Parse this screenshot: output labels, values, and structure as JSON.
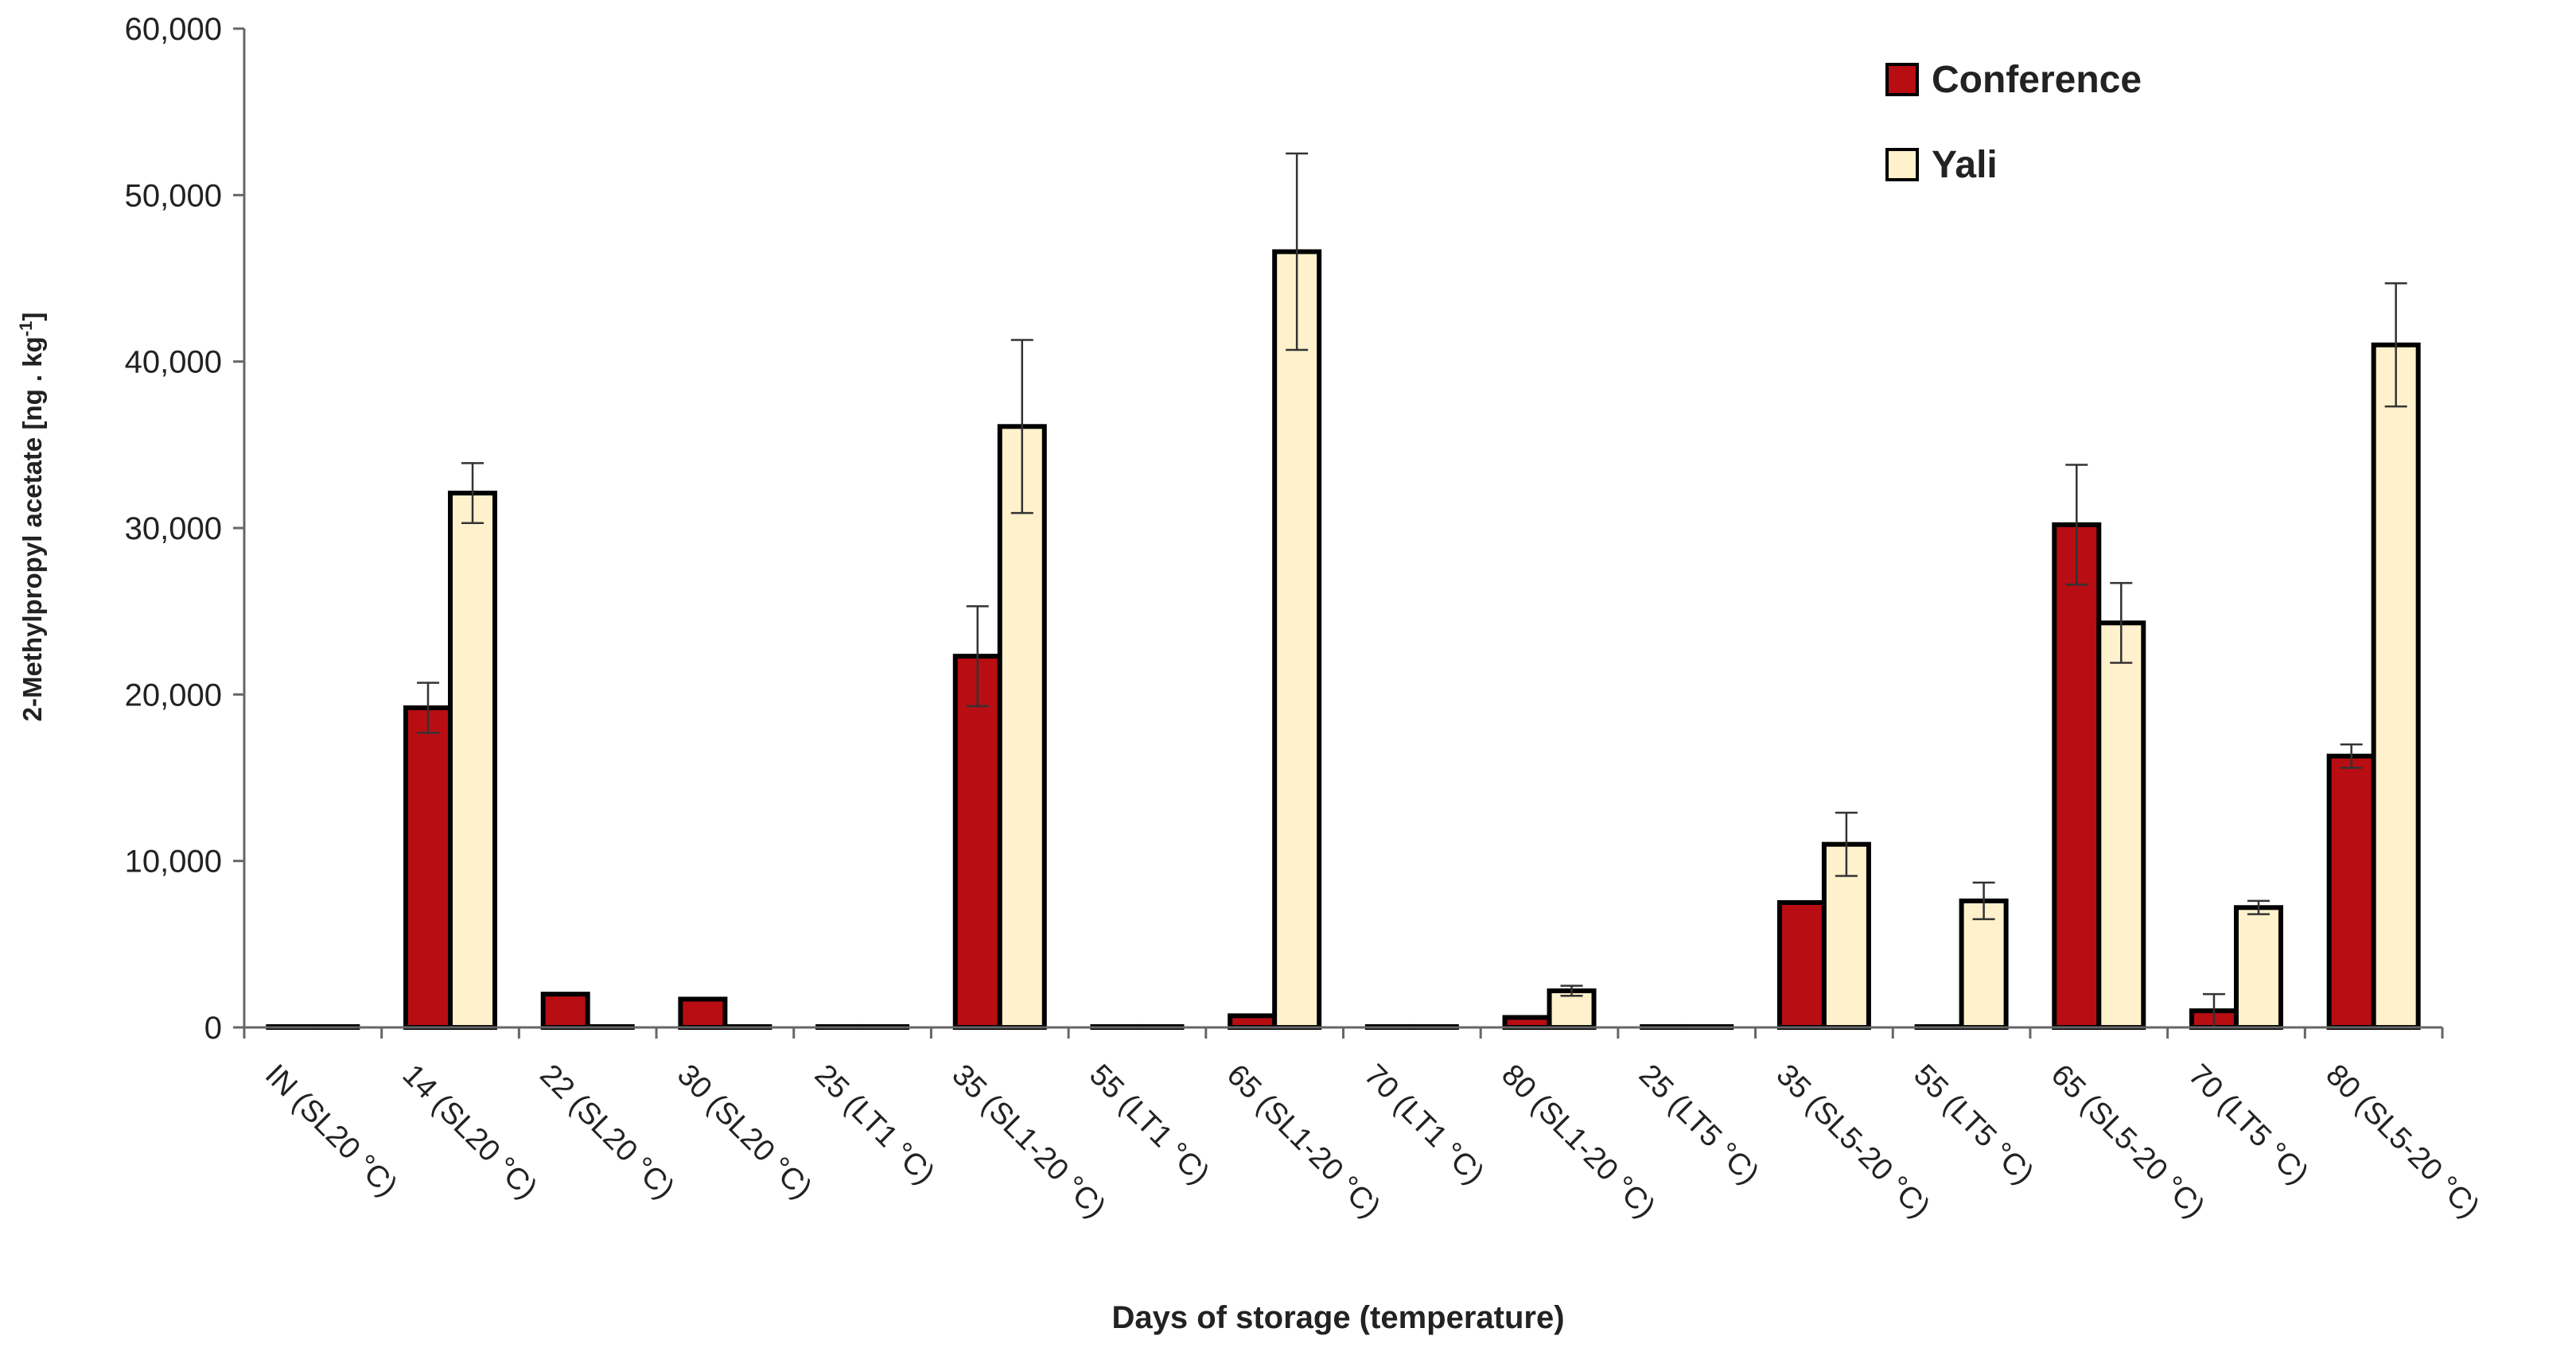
{
  "colors": {
    "conference_fill": "#b80d13",
    "yali_fill": "#fff1cc",
    "bar_stroke": "#000000",
    "axis": "#666666",
    "text": "#222222"
  },
  "chart_data": {
    "type": "bar",
    "title": "",
    "xlabel": "Days of storage (temperature)",
    "ylabel_main": "2-Methylpropyl acetate [ng . kg",
    "ylabel_sup": "-1",
    "ylabel_end": "]",
    "ylim": [
      0,
      60000
    ],
    "yticks": [
      0,
      10000,
      20000,
      30000,
      40000,
      50000,
      60000
    ],
    "ytick_labels": [
      "0",
      "10,000",
      "20,000",
      "30,000",
      "40,000",
      "50,000",
      "60,000"
    ],
    "grid": false,
    "legend_position": "top-right",
    "categories": [
      "IN (SL20 °C)",
      "14 (SL20 °C)",
      "22 (SL20 °C)",
      "30 (SL20 °C)",
      "25 (LT1 °C)",
      "35 (SL1-20 °C)",
      "55 (LT1 °C)",
      "65 (SL1-20 °C)",
      "70 (LT1 °C)",
      "80 (SL1-20 °C)",
      "25 (LT5 °C)",
      "35 (SL5-20 °C)",
      "55 (LT5 °C)",
      "65 (SL5-20 °C)",
      "70 (LT5 °C)",
      "80 (SL5-20 °C)"
    ],
    "series": [
      {
        "name": "Conference",
        "values": [
          50,
          19200,
          2000,
          1700,
          50,
          22300,
          50,
          700,
          50,
          600,
          50,
          7500,
          50,
          30200,
          1000,
          16300
        ],
        "errors": [
          0,
          1500,
          0,
          0,
          0,
          3000,
          0,
          0,
          0,
          0,
          0,
          0,
          0,
          3600,
          1000,
          700
        ]
      },
      {
        "name": "Yali",
        "values": [
          50,
          32100,
          50,
          50,
          50,
          36100,
          50,
          46600,
          50,
          2200,
          50,
          11000,
          7600,
          24300,
          7200,
          41000
        ],
        "errors": [
          0,
          1800,
          0,
          0,
          0,
          5200,
          0,
          5900,
          0,
          300,
          0,
          1900,
          1100,
          2400,
          400,
          3700
        ]
      }
    ]
  }
}
